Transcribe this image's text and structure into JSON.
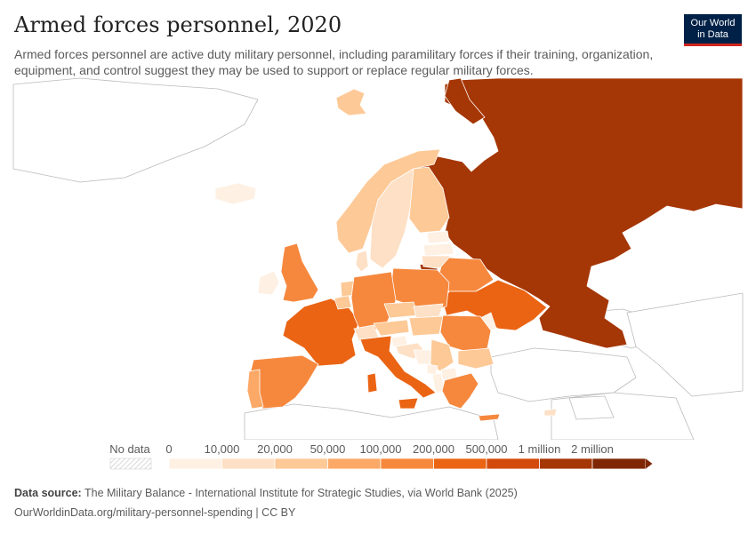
{
  "header": {
    "title": "Armed forces personnel, 2020",
    "subtitle": "Armed forces personnel are active duty military personnel, including paramilitary forces if their training, organization, equipment, and control suggest they may be used to support or replace regular military forces."
  },
  "logo": {
    "line1": "Our World",
    "line2": "in Data"
  },
  "legend": {
    "no_data_label": "No data",
    "ticks": [
      "0",
      "10,000",
      "20,000",
      "50,000",
      "100,000",
      "200,000",
      "500,000",
      "1 million",
      "2 million"
    ],
    "colors": [
      "#fef0e3",
      "#fde0c5",
      "#fdc997",
      "#fca866",
      "#f6883e",
      "#ea6414",
      "#d24a0c",
      "#a53605",
      "#7f2704"
    ]
  },
  "footer": {
    "source_label": "Data source:",
    "source_text": "The Military Balance - International Institute for Strategic Studies, via World Bank (2025)",
    "url_license": "OurWorldinData.org/military-personnel-spending | CC BY"
  },
  "chart_data": {
    "type": "choropleth",
    "year": 2020,
    "bins": [
      "0-10,000",
      "10,000-20,000",
      "20,000-50,000",
      "50,000-100,000",
      "100,000-200,000",
      "200,000-500,000",
      "500,000-1 million",
      "1 million-2 million",
      ">2 million"
    ],
    "regions": [
      {
        "name": "Russia",
        "bin": "1 million-2 million"
      },
      {
        "name": "France",
        "bin": "200,000-500,000"
      },
      {
        "name": "Italy",
        "bin": "200,000-500,000"
      },
      {
        "name": "Ukraine",
        "bin": "200,000-500,000"
      },
      {
        "name": "Germany",
        "bin": "100,000-200,000"
      },
      {
        "name": "Poland",
        "bin": "100,000-200,000"
      },
      {
        "name": "Spain",
        "bin": "100,000-200,000"
      },
      {
        "name": "United Kingdom",
        "bin": "100,000-200,000"
      },
      {
        "name": "Romania",
        "bin": "100,000-200,000"
      },
      {
        "name": "Greece",
        "bin": "100,000-200,000"
      },
      {
        "name": "Belarus",
        "bin": "100,000-200,000"
      },
      {
        "name": "Portugal",
        "bin": "50,000-100,000"
      },
      {
        "name": "Bulgaria",
        "bin": "20,000-50,000"
      },
      {
        "name": "Finland",
        "bin": "20,000-50,000"
      },
      {
        "name": "Norway",
        "bin": "20,000-50,000"
      },
      {
        "name": "Netherlands",
        "bin": "20,000-50,000"
      },
      {
        "name": "Austria",
        "bin": "20,000-50,000"
      },
      {
        "name": "Hungary",
        "bin": "20,000-50,000"
      },
      {
        "name": "Czechia",
        "bin": "20,000-50,000"
      },
      {
        "name": "Serbia",
        "bin": "20,000-50,000"
      },
      {
        "name": "Switzerland",
        "bin": "10,000-20,000"
      },
      {
        "name": "Sweden",
        "bin": "10,000-20,000"
      },
      {
        "name": "Denmark",
        "bin": "10,000-20,000"
      },
      {
        "name": "Ireland",
        "bin": "0-10,000"
      },
      {
        "name": "Iceland",
        "bin": "0-10,000"
      },
      {
        "name": "Estonia",
        "bin": "0-10,000"
      },
      {
        "name": "Latvia",
        "bin": "0-10,000"
      },
      {
        "name": "Lithuania",
        "bin": "10,000-20,000"
      },
      {
        "name": "Slovakia",
        "bin": "10,000-20,000"
      },
      {
        "name": "Croatia",
        "bin": "10,000-20,000"
      },
      {
        "name": "Slovenia",
        "bin": "0-10,000"
      },
      {
        "name": "Bosnia and Herzegovina",
        "bin": "0-10,000"
      },
      {
        "name": "North Macedonia",
        "bin": "0-10,000"
      },
      {
        "name": "Albania",
        "bin": "0-10,000"
      },
      {
        "name": "Moldova",
        "bin": "0-10,000"
      },
      {
        "name": "Montenegro",
        "bin": "0-10,000"
      },
      {
        "name": "Belgium",
        "bin": "20,000-50,000"
      },
      {
        "name": "Svalbard",
        "bin": "20,000-50,000"
      },
      {
        "name": "Cyprus",
        "bin": "10,000-20,000"
      }
    ]
  }
}
